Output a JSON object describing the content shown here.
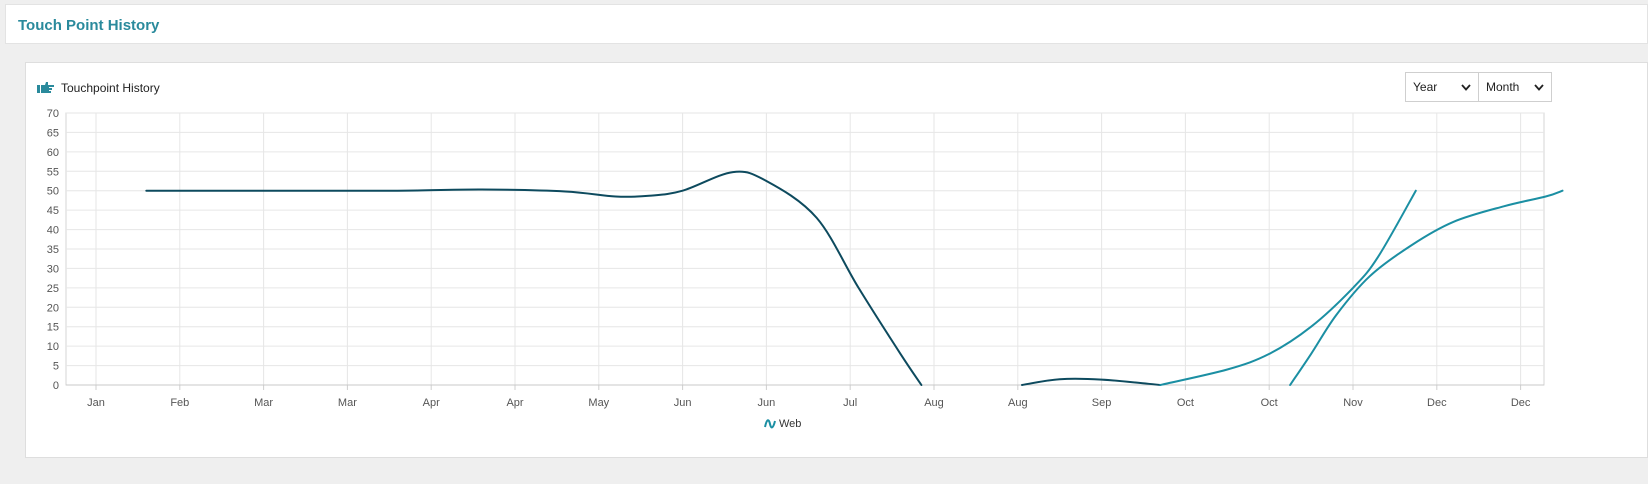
{
  "page": {
    "title": "Touch Point History"
  },
  "panel": {
    "title": "Touchpoint History",
    "icon": "hand-pointing-icon"
  },
  "filters": {
    "period": "Year",
    "granularity": "Month"
  },
  "colors": {
    "accent": "#2a8a9c",
    "series_dark": "#0d4a5e",
    "series_teal": "#1b8fa3"
  },
  "chart_data": {
    "type": "line",
    "categories": [
      "Jan",
      "Feb",
      "Mar",
      "Mar",
      "Apr",
      "Apr",
      "May",
      "Jun",
      "Jun",
      "Jul",
      "Aug",
      "Aug",
      "Sep",
      "Oct",
      "Oct",
      "Nov",
      "Dec",
      "Dec"
    ],
    "ylim": [
      0,
      70
    ],
    "yticks": [
      0,
      5,
      10,
      15,
      20,
      25,
      30,
      35,
      40,
      45,
      50,
      55,
      60,
      65,
      70
    ],
    "grid": true,
    "legend": {
      "position": "bottom-center",
      "entries": [
        "Web"
      ]
    },
    "series": [
      {
        "name": "Web",
        "color": "#0d4a5e",
        "points": [
          [
            0.6,
            50
          ],
          [
            1.6,
            50
          ],
          [
            2.6,
            50
          ],
          [
            3.6,
            50
          ],
          [
            4.6,
            50.3
          ],
          [
            5.6,
            49.8
          ],
          [
            6.2,
            48.5
          ],
          [
            6.6,
            48.7
          ],
          [
            7,
            50
          ],
          [
            7.6,
            54.8
          ],
          [
            8,
            52.5
          ],
          [
            8.6,
            43
          ],
          [
            9.1,
            25
          ],
          [
            9.6,
            8
          ],
          [
            9.85,
            0
          ]
        ]
      },
      {
        "color": "#0d4a5e",
        "points": [
          [
            11.05,
            0
          ],
          [
            11.5,
            1.5
          ],
          [
            12,
            1.4
          ],
          [
            12.7,
            0
          ]
        ]
      },
      {
        "color": "#1b8fa3",
        "points": [
          [
            12.7,
            0
          ],
          [
            13.5,
            4
          ],
          [
            14,
            8
          ],
          [
            14.5,
            15
          ],
          [
            15,
            25
          ],
          [
            15.3,
            33
          ],
          [
            15.75,
            50
          ]
        ]
      },
      {
        "color": "#1b8fa3",
        "points": [
          [
            14.25,
            0
          ],
          [
            14.5,
            8
          ],
          [
            14.8,
            18
          ],
          [
            15.2,
            28
          ],
          [
            15.7,
            36
          ],
          [
            16.2,
            42
          ],
          [
            16.8,
            46
          ],
          [
            17.3,
            48.5
          ],
          [
            17.5,
            50
          ]
        ]
      }
    ]
  }
}
